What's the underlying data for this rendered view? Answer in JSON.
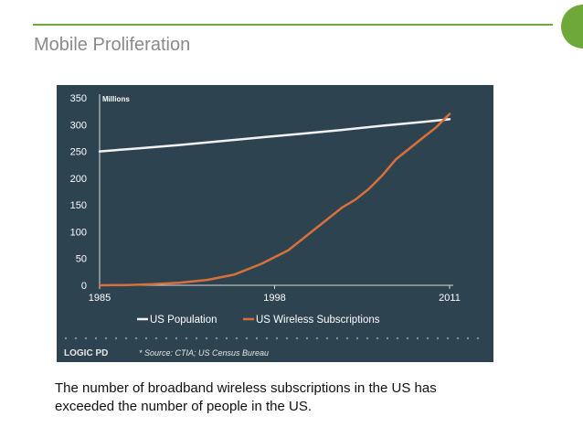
{
  "slide": {
    "title": "Mobile Proliferation",
    "caption_line1": "The number of broadband wireless subscriptions in the US has",
    "caption_line2": "exceeded the number of people in the US."
  },
  "colors": {
    "accent": "#6fa83a",
    "panel_background": "#2e4350",
    "population_line": "#f2f2f2",
    "wireless_line": "#d9703a"
  },
  "chart_panel": {
    "unit_label": "Millions",
    "logo_text": "LOGIC PD",
    "source_note": "* Source: CTIA; US Census Bureau"
  },
  "chart_data": {
    "type": "line",
    "title": "",
    "xlabel": "",
    "ylabel": "Millions",
    "xlim": [
      1985,
      2011
    ],
    "ylim": [
      0,
      350
    ],
    "x_ticks": [
      1985,
      1998,
      2011
    ],
    "y_ticks": [
      0,
      50,
      100,
      150,
      200,
      250,
      300,
      350
    ],
    "grid": false,
    "legend_position": "bottom",
    "series": [
      {
        "name": "US Population",
        "color": "#f2f2f2",
        "points": [
          [
            1985,
            250
          ],
          [
            1988,
            256
          ],
          [
            1991,
            262
          ],
          [
            1994,
            269
          ],
          [
            1997,
            276
          ],
          [
            2000,
            283
          ],
          [
            2003,
            290
          ],
          [
            2006,
            298
          ],
          [
            2009,
            305
          ],
          [
            2011,
            310
          ]
        ]
      },
      {
        "name": "US Wireless Subscriptions",
        "color": "#d9703a",
        "points": [
          [
            1985,
            0
          ],
          [
            1987,
            0.5
          ],
          [
            1989,
            2
          ],
          [
            1991,
            5
          ],
          [
            1993,
            10
          ],
          [
            1995,
            20
          ],
          [
            1997,
            40
          ],
          [
            1999,
            65
          ],
          [
            2001,
            105
          ],
          [
            2003,
            145
          ],
          [
            2004,
            160
          ],
          [
            2005,
            180
          ],
          [
            2006,
            205
          ],
          [
            2007,
            235
          ],
          [
            2008,
            255
          ],
          [
            2009,
            275
          ],
          [
            2010,
            295
          ],
          [
            2011,
            320
          ]
        ]
      }
    ]
  }
}
